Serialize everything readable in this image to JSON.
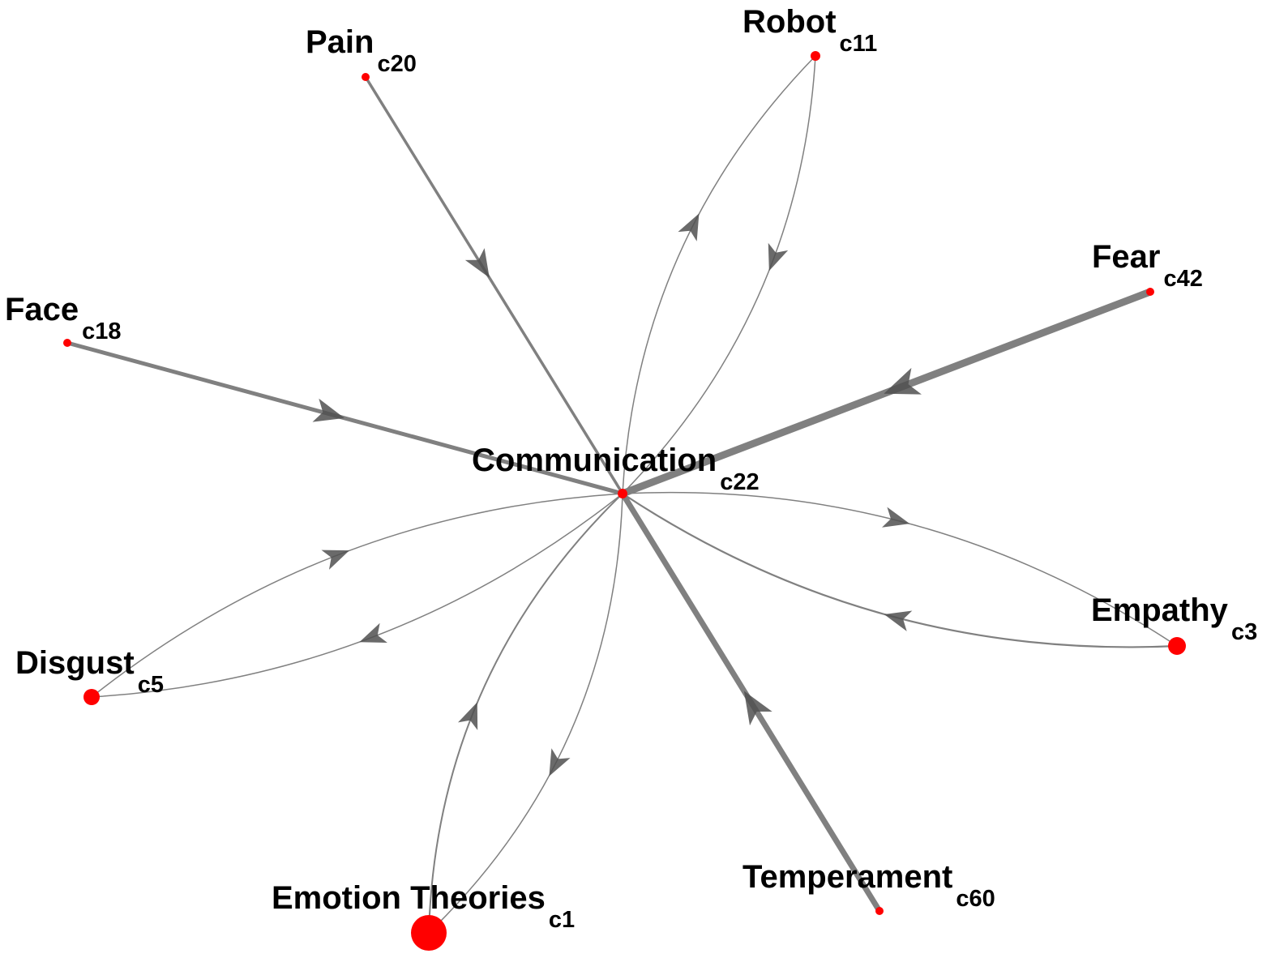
{
  "diagram": {
    "type": "directed-network",
    "center_node": "c22",
    "colors": {
      "node": "#ff0000",
      "edge": "#808080",
      "arrow": "#505050",
      "label": "#000000"
    },
    "nodes": [
      {
        "id": "c22",
        "name": "Communication",
        "sub": "c22"
      },
      {
        "id": "c20",
        "name": "Pain",
        "sub": "c20"
      },
      {
        "id": "c11",
        "name": "Robot",
        "sub": "c11"
      },
      {
        "id": "c42",
        "name": "Fear",
        "sub": "c42"
      },
      {
        "id": "c18",
        "name": "Face",
        "sub": "c18"
      },
      {
        "id": "c3",
        "name": "Empathy",
        "sub": "c3"
      },
      {
        "id": "c5",
        "name": "Disgust",
        "sub": "c5"
      },
      {
        "id": "c1",
        "name": "Emotion Theories",
        "sub": "c1"
      },
      {
        "id": "c60",
        "name": "Temperament",
        "sub": "c60"
      }
    ],
    "edges": [
      {
        "from": "c20",
        "to": "c22"
      },
      {
        "from": "c11",
        "to": "c22"
      },
      {
        "from": "c22",
        "to": "c11"
      },
      {
        "from": "c42",
        "to": "c22"
      },
      {
        "from": "c18",
        "to": "c22"
      },
      {
        "from": "c3",
        "to": "c22"
      },
      {
        "from": "c22",
        "to": "c3"
      },
      {
        "from": "c22",
        "to": "c5"
      },
      {
        "from": "c5",
        "to": "c22"
      },
      {
        "from": "c22",
        "to": "c1"
      },
      {
        "from": "c1",
        "to": "c22"
      },
      {
        "from": "c60",
        "to": "c22"
      }
    ]
  }
}
